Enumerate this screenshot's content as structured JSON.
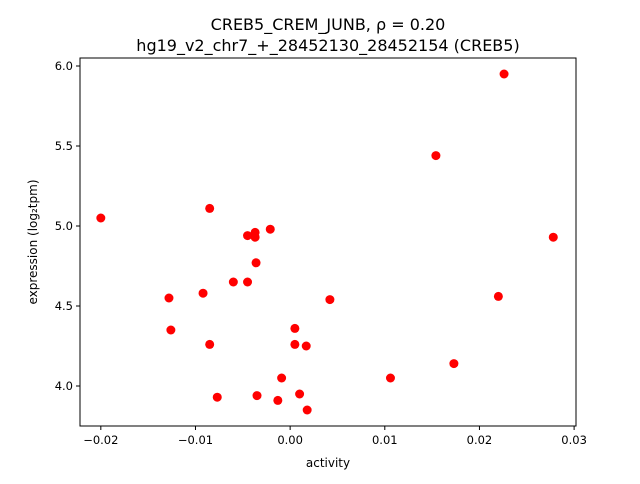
{
  "chart_data": {
    "type": "scatter",
    "title_line1": "CREB5_CREM_JUNB, ρ = 0.20",
    "title_line2": "hg19_v2_chr7_+_28452130_28452154 (CREB5)",
    "xlabel": "activity",
    "ylabel": "expression (log₂tpm)",
    "xlim": [
      -0.0222,
      0.0302
    ],
    "ylim": [
      3.75,
      6.05
    ],
    "xticks": [
      -0.02,
      -0.01,
      0.0,
      0.01,
      0.02,
      0.03
    ],
    "xtick_labels": [
      "−0.02",
      "−0.01",
      "0.00",
      "0.01",
      "0.02",
      "0.03"
    ],
    "yticks": [
      4.0,
      4.5,
      5.0,
      5.5,
      6.0
    ],
    "ytick_labels": [
      "4.0",
      "4.5",
      "5.0",
      "5.5",
      "6.0"
    ],
    "grid": false,
    "marker_color": "#ff0000",
    "points": [
      {
        "x": -0.02,
        "y": 5.05
      },
      {
        "x": -0.0128,
        "y": 4.55
      },
      {
        "x": -0.0126,
        "y": 4.35
      },
      {
        "x": -0.0092,
        "y": 4.58
      },
      {
        "x": -0.0085,
        "y": 5.11
      },
      {
        "x": -0.0085,
        "y": 4.26
      },
      {
        "x": -0.0077,
        "y": 3.93
      },
      {
        "x": -0.006,
        "y": 4.65
      },
      {
        "x": -0.0045,
        "y": 4.94
      },
      {
        "x": -0.0045,
        "y": 4.65
      },
      {
        "x": -0.0037,
        "y": 4.96
      },
      {
        "x": -0.0037,
        "y": 4.93
      },
      {
        "x": -0.0036,
        "y": 4.77
      },
      {
        "x": -0.0035,
        "y": 3.94
      },
      {
        "x": -0.0021,
        "y": 4.98
      },
      {
        "x": -0.0013,
        "y": 3.91
      },
      {
        "x": -0.0009,
        "y": 4.05
      },
      {
        "x": 0.0005,
        "y": 4.36
      },
      {
        "x": 0.0005,
        "y": 4.26
      },
      {
        "x": 0.001,
        "y": 3.95
      },
      {
        "x": 0.0017,
        "y": 4.25
      },
      {
        "x": 0.0018,
        "y": 3.85
      },
      {
        "x": 0.0042,
        "y": 4.54
      },
      {
        "x": 0.0106,
        "y": 4.05
      },
      {
        "x": 0.0154,
        "y": 5.44
      },
      {
        "x": 0.0173,
        "y": 4.14
      },
      {
        "x": 0.022,
        "y": 4.56
      },
      {
        "x": 0.0226,
        "y": 5.95
      },
      {
        "x": 0.0278,
        "y": 4.93
      }
    ]
  }
}
